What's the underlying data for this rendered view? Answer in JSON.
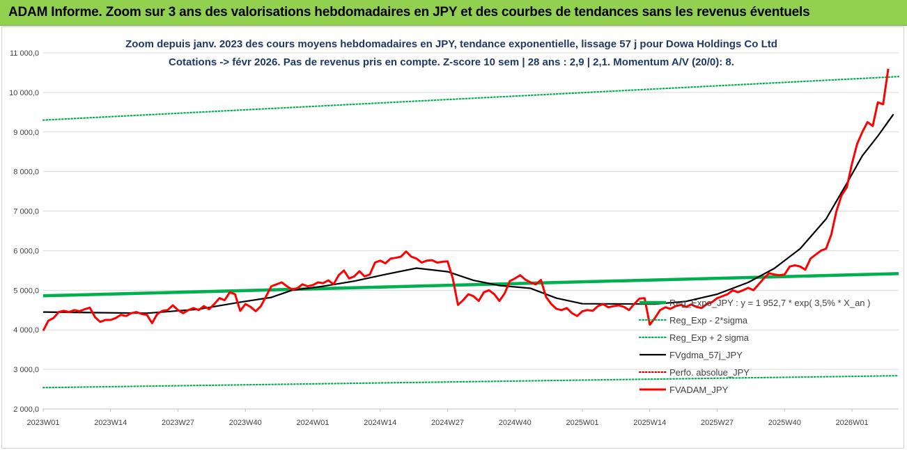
{
  "header": {
    "title": "ADAM Informe. Zoom sur 3 ans des valorisations hebdomadaires en JPY et des courbes de tendances sans les revenus éventuels"
  },
  "chart_data": {
    "type": "line",
    "title": "Zoom depuis janv. 2023 des cours moyens hebdomadaires en JPY, tendance exponentielle, lissage 57 j pour Dowa Holdings Co Ltd",
    "subtitle": "Cotations -> févr 2026.  Pas de revenus pris en compte. Z-score 10 sem | 28 ans : 2,9 | 2,1. Momentum A/V (20/0): 8.",
    "xlabel": "",
    "ylabel": "",
    "ylim": [
      2000,
      11000
    ],
    "yticks": [
      "2 000,0",
      "3 000,0",
      "4 000,0",
      "5 000,0",
      "6 000,0",
      "7 000,0",
      "8 000,0",
      "9 000,0",
      "10 000,0",
      "11 000,0"
    ],
    "ytick_values": [
      2000,
      3000,
      4000,
      5000,
      6000,
      7000,
      8000,
      9000,
      10000,
      11000
    ],
    "xticks": [
      "2023W01",
      "2023W14",
      "2023W27",
      "2023W40",
      "2024W01",
      "2024W14",
      "2024W27",
      "2024W40",
      "2025W01",
      "2025W14",
      "2025W27",
      "2025W40",
      "2026W01"
    ],
    "xtick_weeks": [
      0,
      13,
      26,
      39,
      52,
      65,
      78,
      91,
      104,
      117,
      130,
      143,
      156
    ],
    "x_range": [
      0,
      165
    ],
    "grid": "horizontal",
    "legend_position": "lower-right",
    "colors": {
      "reg": "#00b050",
      "band_low": "#00b050",
      "band_high": "#00b050",
      "smooth": "#000000",
      "perfo": "#c00000",
      "fvadam": "#ff0000",
      "grid": "#d9d9d9",
      "title": "#1f3864"
    },
    "series": [
      {
        "name": "Reg_Expo_JPY : y = 1 952,7 * exp( 3,5% *  X_an )",
        "key": "reg",
        "style": "thick",
        "points": [
          [
            0,
            4860
          ],
          [
            165,
            5420
          ]
        ]
      },
      {
        "name": "Reg_Exp - 2*sigma",
        "key": "band_low",
        "style": "dotted",
        "points": [
          [
            0,
            2540
          ],
          [
            165,
            2840
          ]
        ]
      },
      {
        "name": "Reg_Exp + 2 sigma",
        "key": "band_high",
        "style": "dotted",
        "points": [
          [
            0,
            9300
          ],
          [
            165,
            10400
          ]
        ]
      },
      {
        "name": "FVgdma_57j_JPY",
        "key": "smooth",
        "style": "solid",
        "points": [
          [
            0,
            4450
          ],
          [
            20,
            4420
          ],
          [
            30,
            4520
          ],
          [
            38,
            4700
          ],
          [
            44,
            4820
          ],
          [
            48,
            5000
          ],
          [
            54,
            5100
          ],
          [
            60,
            5230
          ],
          [
            66,
            5400
          ],
          [
            72,
            5560
          ],
          [
            78,
            5470
          ],
          [
            83,
            5250
          ],
          [
            88,
            5120
          ],
          [
            94,
            5050
          ],
          [
            99,
            4800
          ],
          [
            104,
            4660
          ],
          [
            118,
            4650
          ],
          [
            124,
            4720
          ],
          [
            130,
            4900
          ],
          [
            136,
            5200
          ],
          [
            141,
            5550
          ],
          [
            146,
            6050
          ],
          [
            151,
            6800
          ],
          [
            155,
            7700
          ],
          [
            158,
            8400
          ],
          [
            161,
            8900
          ],
          [
            164,
            9450
          ]
        ]
      },
      {
        "name": "Perfo. absolue_JPY",
        "key": "perfo",
        "style": "dotted-hidden",
        "points": []
      },
      {
        "name": "FVADAM_JPY",
        "key": "fvadam",
        "style": "thick",
        "points": [
          [
            0,
            3980
          ],
          [
            1,
            4230
          ],
          [
            2,
            4300
          ],
          [
            3,
            4450
          ],
          [
            4,
            4480
          ],
          [
            5,
            4450
          ],
          [
            6,
            4500
          ],
          [
            7,
            4470
          ],
          [
            8,
            4520
          ],
          [
            9,
            4560
          ],
          [
            10,
            4320
          ],
          [
            11,
            4200
          ],
          [
            12,
            4250
          ],
          [
            13,
            4250
          ],
          [
            14,
            4300
          ],
          [
            15,
            4380
          ],
          [
            16,
            4350
          ],
          [
            17,
            4420
          ],
          [
            18,
            4450
          ],
          [
            19,
            4400
          ],
          [
            20,
            4380
          ],
          [
            21,
            4170
          ],
          [
            22,
            4400
          ],
          [
            23,
            4480
          ],
          [
            24,
            4500
          ],
          [
            25,
            4620
          ],
          [
            26,
            4500
          ],
          [
            27,
            4420
          ],
          [
            28,
            4500
          ],
          [
            29,
            4550
          ],
          [
            30,
            4500
          ],
          [
            31,
            4600
          ],
          [
            32,
            4520
          ],
          [
            33,
            4650
          ],
          [
            34,
            4800
          ],
          [
            35,
            4750
          ],
          [
            36,
            4950
          ],
          [
            37,
            4900
          ],
          [
            38,
            4480
          ],
          [
            39,
            4650
          ],
          [
            40,
            4580
          ],
          [
            41,
            4470
          ],
          [
            42,
            4600
          ],
          [
            43,
            4850
          ],
          [
            44,
            5100
          ],
          [
            45,
            5150
          ],
          [
            46,
            5200
          ],
          [
            47,
            5100
          ],
          [
            48,
            5020
          ],
          [
            49,
            5050
          ],
          [
            50,
            5150
          ],
          [
            51,
            5100
          ],
          [
            52,
            5130
          ],
          [
            53,
            5200
          ],
          [
            54,
            5180
          ],
          [
            55,
            5250
          ],
          [
            56,
            5150
          ],
          [
            57,
            5380
          ],
          [
            58,
            5500
          ],
          [
            59,
            5300
          ],
          [
            60,
            5350
          ],
          [
            61,
            5480
          ],
          [
            62,
            5350
          ],
          [
            63,
            5400
          ],
          [
            64,
            5700
          ],
          [
            65,
            5750
          ],
          [
            66,
            5680
          ],
          [
            67,
            5800
          ],
          [
            68,
            5820
          ],
          [
            69,
            5850
          ],
          [
            70,
            5980
          ],
          [
            71,
            5850
          ],
          [
            72,
            5800
          ],
          [
            73,
            5700
          ],
          [
            74,
            5750
          ],
          [
            75,
            5760
          ],
          [
            76,
            5700
          ],
          [
            77,
            5720
          ],
          [
            78,
            5730
          ],
          [
            79,
            5300
          ],
          [
            80,
            4630
          ],
          [
            81,
            4750
          ],
          [
            82,
            4900
          ],
          [
            83,
            4850
          ],
          [
            84,
            4730
          ],
          [
            85,
            4950
          ],
          [
            86,
            5000
          ],
          [
            87,
            4900
          ],
          [
            88,
            4730
          ],
          [
            89,
            4920
          ],
          [
            90,
            5230
          ],
          [
            91,
            5300
          ],
          [
            92,
            5380
          ],
          [
            93,
            5270
          ],
          [
            94,
            5200
          ],
          [
            95,
            5150
          ],
          [
            96,
            5260
          ],
          [
            97,
            4830
          ],
          [
            98,
            4650
          ],
          [
            99,
            4530
          ],
          [
            100,
            4500
          ],
          [
            101,
            4550
          ],
          [
            102,
            4420
          ],
          [
            103,
            4350
          ],
          [
            104,
            4470
          ],
          [
            105,
            4500
          ],
          [
            106,
            4480
          ],
          [
            107,
            4600
          ],
          [
            108,
            4650
          ],
          [
            109,
            4570
          ],
          [
            110,
            4600
          ],
          [
            111,
            4620
          ],
          [
            112,
            4580
          ],
          [
            113,
            4500
          ],
          [
            114,
            4650
          ],
          [
            115,
            4790
          ],
          [
            116,
            4800
          ],
          [
            117,
            4130
          ],
          [
            118,
            4300
          ],
          [
            119,
            4500
          ],
          [
            120,
            4570
          ],
          [
            121,
            4530
          ],
          [
            122,
            4600
          ],
          [
            123,
            4630
          ],
          [
            124,
            4580
          ],
          [
            125,
            4640
          ],
          [
            126,
            4580
          ],
          [
            127,
            4550
          ],
          [
            128,
            4650
          ],
          [
            129,
            4700
          ],
          [
            130,
            4800
          ],
          [
            131,
            4850
          ],
          [
            132,
            4900
          ],
          [
            133,
            5000
          ],
          [
            134,
            4950
          ],
          [
            135,
            5000
          ],
          [
            136,
            5060
          ],
          [
            137,
            5000
          ],
          [
            138,
            5150
          ],
          [
            139,
            5300
          ],
          [
            140,
            5430
          ],
          [
            141,
            5400
          ],
          [
            142,
            5380
          ],
          [
            143,
            5400
          ],
          [
            144,
            5600
          ],
          [
            145,
            5630
          ],
          [
            146,
            5600
          ],
          [
            147,
            5520
          ],
          [
            148,
            5800
          ],
          [
            149,
            5900
          ],
          [
            150,
            6000
          ],
          [
            151,
            6050
          ],
          [
            152,
            6400
          ],
          [
            153,
            7000
          ],
          [
            154,
            7400
          ],
          [
            155,
            7600
          ],
          [
            156,
            8200
          ],
          [
            157,
            8700
          ],
          [
            158,
            9000
          ],
          [
            159,
            9250
          ],
          [
            160,
            9150
          ],
          [
            161,
            9750
          ],
          [
            162,
            9700
          ],
          [
            163,
            10600
          ]
        ]
      }
    ]
  }
}
